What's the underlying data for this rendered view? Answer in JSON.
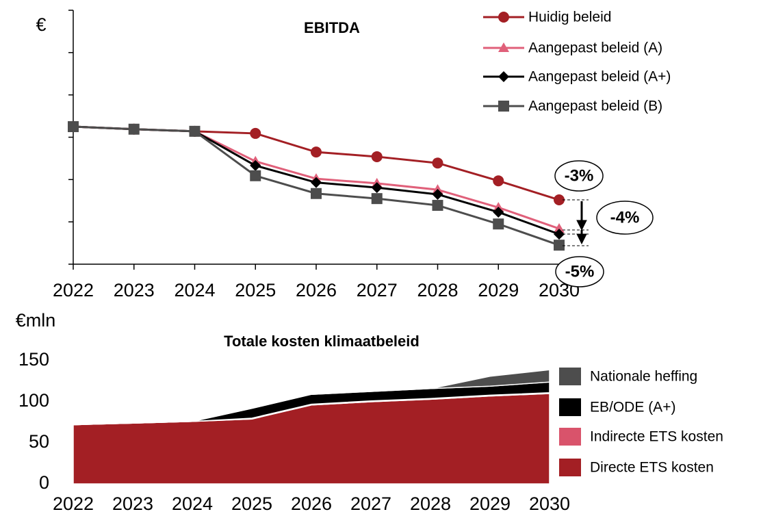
{
  "chart_data": [
    {
      "type": "line",
      "title": "EBITDA",
      "y_label": "€",
      "categories": [
        "2022",
        "2023",
        "2024",
        "2025",
        "2026",
        "2027",
        "2028",
        "2029",
        "2030"
      ],
      "ylim": [
        0,
        6
      ],
      "yticks": [
        0,
        1,
        2,
        3,
        4,
        5,
        6
      ],
      "series": [
        {
          "name": "Huidig beleid",
          "color": "#a31f24",
          "marker": "circle",
          "values": [
            3.25,
            3.19,
            3.14,
            3.09,
            2.65,
            2.54,
            2.39,
            1.97,
            1.52
          ]
        },
        {
          "name": "Aangepast beleid (A)",
          "color": "#e0607a",
          "marker": "triangle",
          "values": [
            3.25,
            3.19,
            3.14,
            2.43,
            2.02,
            1.91,
            1.76,
            1.34,
            0.84
          ]
        },
        {
          "name": "Aangepast beleid (A+)",
          "color": "#000000",
          "marker": "diamond",
          "values": [
            3.25,
            3.19,
            3.14,
            2.33,
            1.93,
            1.81,
            1.65,
            1.23,
            0.71
          ]
        },
        {
          "name": "Aangepast beleid (B)",
          "color": "#4d4d4d",
          "marker": "square",
          "values": [
            3.25,
            3.19,
            3.14,
            2.09,
            1.67,
            1.55,
            1.39,
            0.95,
            0.45
          ]
        }
      ],
      "annotations": [
        "-3%",
        "-4%",
        "-5%"
      ]
    },
    {
      "type": "stacked_area",
      "title": "Totale kosten klimaatbeleid",
      "y_label": "€mln",
      "categories": [
        "2022",
        "2023",
        "2024",
        "2025",
        "2026",
        "2027",
        "2028",
        "2029",
        "2030"
      ],
      "ylim": [
        0,
        150
      ],
      "yticks": [
        0,
        50,
        100,
        150
      ],
      "series": [
        {
          "name": "Directe ETS kosten",
          "color": "#a31f24",
          "values": [
            72,
            74,
            76,
            79,
            96,
            100,
            103,
            107,
            110
          ]
        },
        {
          "name": "Indirecte ETS kosten",
          "color": "#d9536b",
          "values": [
            0,
            0,
            0,
            1,
            1,
            1,
            1,
            1,
            1
          ]
        },
        {
          "name": "EB/ODE (A+)",
          "color": "#000000",
          "values": [
            0,
            0,
            0,
            12,
            12,
            11.5,
            12,
            11,
            13
          ]
        },
        {
          "name": "Nationale heffing",
          "color": "#4d4d4d",
          "values": [
            0,
            0,
            0,
            0,
            0,
            0,
            0,
            12,
            15
          ]
        }
      ]
    }
  ]
}
